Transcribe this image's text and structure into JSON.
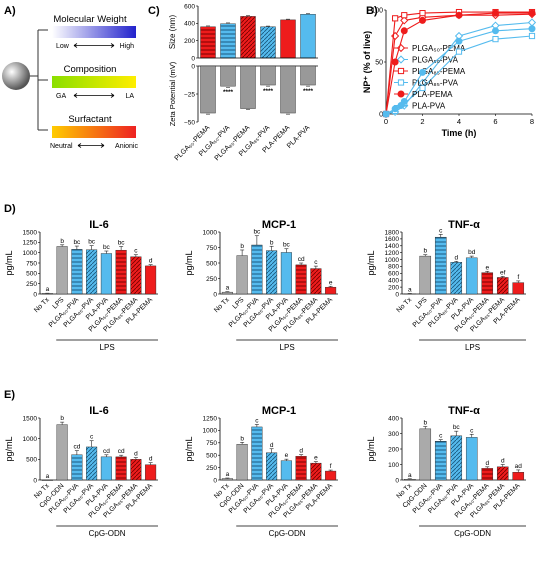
{
  "panels": {
    "A": {
      "letter": "A)"
    },
    "B": {
      "letter": "B)"
    },
    "C": {
      "letter": "C)"
    },
    "D": {
      "letter": "D)"
    },
    "E": {
      "letter": "E)"
    }
  },
  "panel_a": {
    "sections": [
      {
        "title": "Molecular Weight",
        "left": "Low",
        "right": "High",
        "gradient": [
          "#ffffff",
          "#2222cc"
        ]
      },
      {
        "title": "Composition",
        "left": "GA",
        "right": "LA",
        "gradient": [
          "#8adf00",
          "#ffee00"
        ]
      },
      {
        "title": "Surfactant",
        "left": "Neutral",
        "right": "Anionic",
        "gradient": [
          "#ffcc00",
          "#ee2222"
        ]
      }
    ]
  },
  "colors": {
    "red": "#ee1c1c",
    "blue": "#55bbee",
    "gray": "#aaaaaa",
    "dark": "#333333"
  },
  "chart_data": [
    {
      "id": "C-size",
      "type": "bar",
      "ylabel": "Size (nm)",
      "ylim": [
        0,
        600
      ],
      "yticks": [
        0,
        200,
        400,
        600
      ],
      "categories": [
        "PLGA₅₀-PEMA",
        "PLGA₅₀-PVA",
        "PLGA₈₅-PEMA",
        "PLGA₈₅-PVA",
        "PLA-PEMA",
        "PLA-PVA"
      ],
      "values": [
        360,
        395,
        480,
        360,
        440,
        505
      ],
      "errors": [
        10,
        10,
        12,
        8,
        8,
        6
      ]
    },
    {
      "id": "C-zeta",
      "type": "bar",
      "ylabel": "Zeta Potential (mV)",
      "ylim": [
        -50,
        0
      ],
      "yticks": [
        -50,
        -25,
        0
      ],
      "categories": [
        "PLGA₅₀-PEMA",
        "PLGA₅₀-PVA",
        "PLGA₈₅-PEMA",
        "PLGA₈₅-PVA",
        "PLA-PEMA",
        "PLA-PVA"
      ],
      "values": [
        -42,
        -18,
        -38,
        -17,
        -42,
        -17
      ],
      "errors": [
        1,
        1,
        1,
        1,
        1,
        1
      ],
      "annotations": [
        "",
        "****",
        "",
        "****",
        "",
        "****"
      ]
    },
    {
      "id": "B",
      "type": "line",
      "xlabel": "Time (h)",
      "ylabel": "NP⁺ (% of live)",
      "xlim": [
        0,
        8
      ],
      "ylim": [
        0,
        100
      ],
      "xticks": [
        0,
        2,
        4,
        6,
        8
      ],
      "yticks": [
        0,
        50,
        100
      ],
      "series": [
        {
          "name": "PLGA₅₀-PEMA",
          "x": [
            0,
            0.5,
            1,
            2,
            4,
            6,
            8
          ],
          "y": [
            0,
            75,
            90,
            93,
            95,
            95,
            96
          ]
        },
        {
          "name": "PLGA₅₀-PVA",
          "x": [
            0,
            0.5,
            1,
            2,
            4,
            6,
            8
          ],
          "y": [
            0,
            2,
            8,
            30,
            75,
            85,
            88
          ]
        },
        {
          "name": "PLGA₈₅-PEMA",
          "x": [
            0,
            0.5,
            1,
            2,
            4,
            6,
            8
          ],
          "y": [
            0,
            92,
            95,
            97,
            98,
            98,
            98
          ]
        },
        {
          "name": "PLGA₈₅-PVA",
          "x": [
            0,
            0.5,
            1,
            2,
            4,
            6,
            8
          ],
          "y": [
            0,
            3,
            10,
            25,
            60,
            72,
            75
          ]
        },
        {
          "name": "PLA-PEMA",
          "x": [
            0,
            0.5,
            1,
            2,
            4,
            6,
            8
          ],
          "y": [
            0,
            50,
            80,
            90,
            95,
            97,
            97
          ]
        },
        {
          "name": "PLA-PVA",
          "x": [
            0,
            0.5,
            1,
            2,
            4,
            6,
            8
          ],
          "y": [
            0,
            5,
            12,
            40,
            70,
            80,
            82
          ]
        }
      ]
    },
    {
      "id": "D-IL6",
      "type": "bar",
      "title": "IL-6",
      "ylabel": "pg/mL",
      "group_label": "LPS",
      "ylim": [
        0,
        1500
      ],
      "yticks": [
        0,
        250,
        500,
        750,
        1000,
        1250,
        1500
      ],
      "categories": [
        "No Tx",
        "LPS",
        "PLGA₅₀-PVA",
        "PLGA₈₅-PVA",
        "PLA-PVA",
        "PLGA₅₀-PEMA",
        "PLGA₈₅-PEMA",
        "PLA-PEMA"
      ],
      "values": [
        15,
        1150,
        1080,
        1070,
        980,
        1060,
        900,
        680
      ],
      "errors": [
        5,
        40,
        80,
        100,
        60,
        90,
        50,
        30
      ],
      "letters": [
        "a",
        "b",
        "bc",
        "bc",
        "bc",
        "bc",
        "c",
        "d"
      ]
    },
    {
      "id": "D-MCP1",
      "type": "bar",
      "title": "MCP-1",
      "ylabel": "pg/mL",
      "group_label": "LPS",
      "ylim": [
        0,
        1000
      ],
      "yticks": [
        0,
        250,
        500,
        750,
        1000
      ],
      "categories": [
        "No Tx",
        "LPS",
        "PLGA₅₀-PVA",
        "PLGA₈₅-PVA",
        "PLA-PVA",
        "PLGA₅₀-PEMA",
        "PLGA₈₅-PEMA",
        "PLA-PEMA"
      ],
      "values": [
        30,
        620,
        790,
        700,
        670,
        470,
        410,
        110
      ],
      "errors": [
        8,
        90,
        150,
        70,
        60,
        30,
        40,
        15
      ],
      "letters": [
        "a",
        "b",
        "bc",
        "b",
        "bc",
        "cd",
        "c",
        "e"
      ]
    },
    {
      "id": "D-TNF",
      "type": "bar",
      "title": "TNF-α",
      "ylabel": "pg/mL",
      "group_label": "LPS",
      "ylim": [
        0,
        1800
      ],
      "yticks": [
        0,
        200,
        400,
        600,
        800,
        1000,
        1200,
        1400,
        1600,
        1800
      ],
      "categories": [
        "No Tx",
        "LPS",
        "PLGA₅₀-PVA",
        "PLGA₈₅-PVA",
        "PLA-PVA",
        "PLGA₅₀-PEMA",
        "PLGA₈₅-PEMA",
        "PLA-PEMA"
      ],
      "values": [
        10,
        1100,
        1650,
        920,
        1050,
        620,
        480,
        330
      ],
      "errors": [
        5,
        40,
        80,
        30,
        50,
        40,
        30,
        50
      ],
      "letters": [
        "a",
        "b",
        "c",
        "d",
        "bd",
        "e",
        "ef",
        "f"
      ]
    },
    {
      "id": "E-IL6",
      "type": "bar",
      "title": "IL-6",
      "ylabel": "pg/mL",
      "group_label": "CpG-ODN",
      "ylim": [
        0,
        1500
      ],
      "yticks": [
        0,
        500,
        1000,
        1500
      ],
      "categories": [
        "No Tx",
        "CpG-ODN",
        "PLGA₅₀-PVA",
        "PLGA₈₅-PVA",
        "PLA-PVA",
        "PLGA₅₀-PEMA",
        "PLGA₈₅-PEMA",
        "PLA-PEMA"
      ],
      "values": [
        0,
        1340,
        610,
        800,
        560,
        560,
        500,
        370
      ],
      "errors": [
        0,
        60,
        100,
        150,
        50,
        40,
        40,
        50
      ],
      "letters": [
        "a",
        "b",
        "cd",
        "c",
        "cd",
        "cd",
        "d",
        "d"
      ]
    },
    {
      "id": "E-MCP1",
      "type": "bar",
      "title": "MCP-1",
      "ylabel": "pg/mL",
      "group_label": "CpG-ODN",
      "ylim": [
        0,
        1250
      ],
      "yticks": [
        0,
        250,
        500,
        750,
        1000,
        1250
      ],
      "categories": [
        "No Tx",
        "CpG-ODN",
        "PLGA₅₀-PVA",
        "PLGA₈₅-PVA",
        "PLA-PVA",
        "PLGA₅₀-PEMA",
        "PLGA₈₅-PEMA",
        "PLA-PEMA"
      ],
      "values": [
        30,
        720,
        1070,
        550,
        390,
        480,
        340,
        180
      ],
      "errors": [
        10,
        40,
        50,
        80,
        30,
        30,
        30,
        20
      ],
      "letters": [
        "a",
        "b",
        "c",
        "d",
        "e",
        "d",
        "e",
        "f"
      ]
    },
    {
      "id": "E-TNF",
      "type": "bar",
      "title": "TNF-α",
      "ylabel": "pg/mL",
      "group_label": "CpG-ODN",
      "ylim": [
        0,
        400
      ],
      "yticks": [
        0,
        100,
        200,
        300,
        400
      ],
      "categories": [
        "No Tx",
        "CpG-ODN",
        "PLGA₅₀-PVA",
        "PLGA₈₅-PVA",
        "PLA-PVA",
        "PLGA₅₀-PEMA",
        "PLGA₈₅-PEMA",
        "PLA-PEMA"
      ],
      "values": [
        5,
        330,
        250,
        285,
        275,
        75,
        85,
        50
      ],
      "errors": [
        3,
        15,
        10,
        30,
        20,
        10,
        15,
        15
      ],
      "letters": [
        "a",
        "b",
        "c",
        "bc",
        "c",
        "d",
        "d",
        "ad"
      ]
    }
  ]
}
